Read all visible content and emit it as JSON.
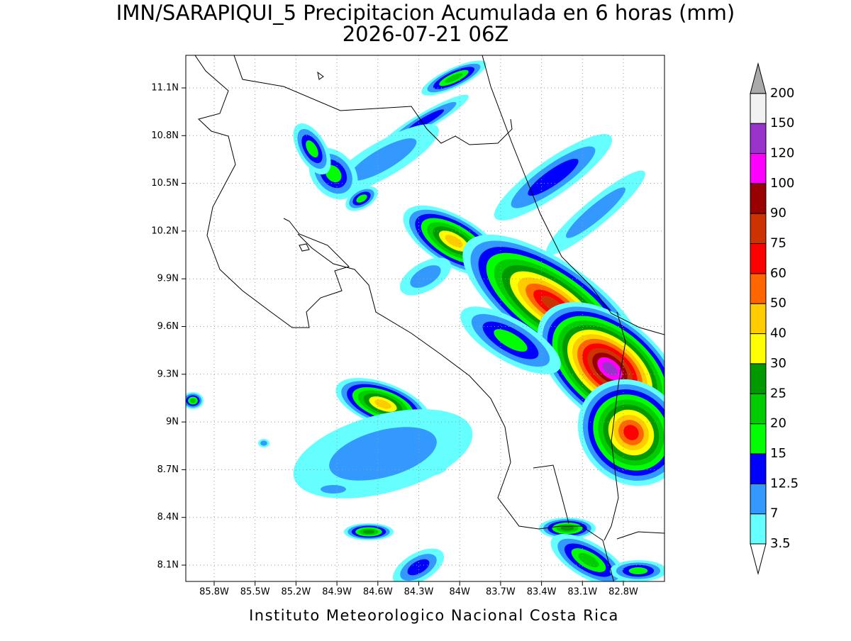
{
  "title": "IMN/SARAPIQUI_5 Precipitacion Acumulada en 6 horas (mm)",
  "subtitle": "2026-07-21 06Z",
  "map": {
    "lat_labels": [
      "11.1N",
      "10.8N",
      "10.5N",
      "10.2N",
      "9.9N",
      "9.6N",
      "9.3N",
      "9N",
      "8.7N",
      "8.4N",
      "8.1N"
    ],
    "lon_labels": [
      "85.8W",
      "85.5W",
      "85.2W",
      "84.9W",
      "84.6W",
      "84.3W",
      "84W",
      "83.7W",
      "83.4W",
      "83.1W",
      "82.8W"
    ]
  },
  "colorbar": {
    "levels": [
      3.5,
      7,
      12.5,
      15,
      20,
      25,
      30,
      40,
      50,
      60,
      75,
      90,
      100,
      120,
      150,
      200
    ],
    "colors": [
      "#ffffff",
      "#66ffff",
      "#3399ff",
      "#0000ff",
      "#00ff00",
      "#00cc00",
      "#009900",
      "#ffff00",
      "#ffcc00",
      "#ff6600",
      "#ff0000",
      "#cc3300",
      "#990000",
      "#ff00ff",
      "#9933cc",
      "#f2f2f2",
      "#aaaaaa"
    ]
  },
  "footer": "Instituto Meteorologico Nacional Costa Rica"
}
